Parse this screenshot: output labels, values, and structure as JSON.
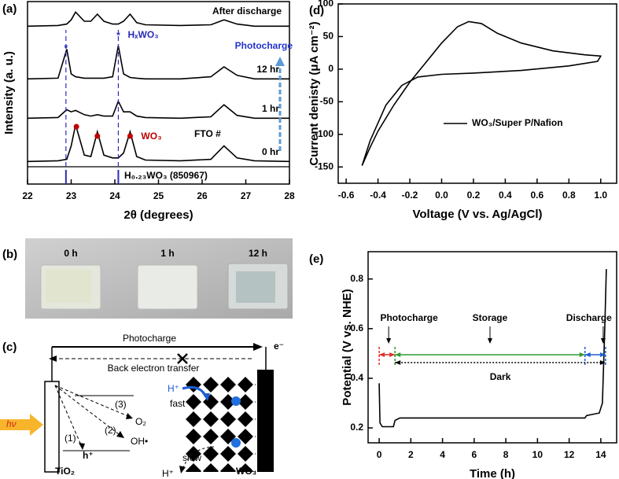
{
  "panel_labels": [
    "(a)",
    "(b)",
    "(c)",
    "(d)",
    "(e)"
  ],
  "chart_data": [
    {
      "type": "spectra",
      "xlabel": "2θ (degrees)",
      "ylabel": "Intensity (a. u.)",
      "xlim": [
        22,
        28
      ],
      "xticks": [
        22,
        23,
        24,
        25,
        26,
        27,
        28
      ],
      "x": [
        22,
        22.7,
        22.9,
        23.0,
        23.1,
        23.3,
        23.45,
        23.6,
        23.75,
        23.95,
        24.08,
        24.2,
        24.35,
        24.5,
        24.7,
        25.5,
        26.2,
        26.5,
        26.8,
        27.2,
        28
      ],
      "series": [
        {
          "name": "0 hr",
          "color": "#000000",
          "values": [
            3,
            4,
            6,
            25,
            55,
            12,
            10,
            45,
            12,
            8,
            8,
            15,
            45,
            10,
            5,
            4,
            6,
            25,
            8,
            4,
            3
          ]
        },
        {
          "name": "1 hr",
          "color": "#000000",
          "values": [
            3,
            4,
            15,
            12,
            14,
            8,
            6,
            8,
            6,
            6,
            27,
            12,
            12,
            6,
            4,
            3,
            5,
            22,
            7,
            3,
            3
          ]
        },
        {
          "name": "12 hr",
          "color": "#000000",
          "values": [
            3,
            4,
            45,
            10,
            6,
            4,
            4,
            4,
            4,
            6,
            50,
            10,
            5,
            4,
            3,
            3,
            6,
            20,
            8,
            3,
            3
          ]
        },
        {
          "name": "After discharge",
          "color": "#000000",
          "values": [
            3,
            4,
            6,
            12,
            23,
            10,
            10,
            20,
            10,
            6,
            6,
            10,
            20,
            8,
            5,
            4,
            5,
            12,
            6,
            3,
            3
          ]
        }
      ],
      "reference": {
        "name": "H₀.₂₃WO₃ (850967)",
        "color": "#2b2bb8",
        "x": [
          22.88,
          24.08
        ],
        "values": [
          100,
          100
        ]
      },
      "wo3_peaks": [
        23.12,
        23.6,
        24.35
      ],
      "annotations": {
        "photocharge": "Photocharge",
        "hxwo3": "HₓWO₃",
        "wo3": "WO₃",
        "fto": "FTO #",
        "star": "*"
      }
    },
    {
      "type": "line",
      "xlabel": "Voltage (V vs. Ag/AgCl)",
      "ylabel": "Current denisty (μA cm⁻²)",
      "xlim": [
        -0.65,
        1.1
      ],
      "xticks": [
        -0.6,
        -0.4,
        -0.2,
        {
          "value": 0,
          "label": "0.0"
        },
        0.2,
        0.4,
        0.6,
        0.8,
        {
          "value": 1,
          "label": "1.0"
        }
      ],
      "ylim": [
        -175,
        100
      ],
      "yticks": [
        -150,
        -100,
        -50,
        0,
        50,
        100
      ],
      "legend": "center right",
      "series": [
        {
          "name": "WO₃/Super P/Nafion",
          "color": "#000000",
          "x": [
            -0.5,
            -0.45,
            -0.4,
            -0.3,
            -0.2,
            -0.1,
            0,
            0.1,
            0.17,
            0.25,
            0.35,
            0.5,
            0.7,
            0.9,
            1.0,
            0.98,
            0.8,
            0.5,
            0.2,
            0,
            -0.15,
            -0.25,
            -0.35,
            -0.45,
            -0.5
          ],
          "values": [
            -148,
            -120,
            -95,
            -55,
            -20,
            10,
            40,
            65,
            73,
            70,
            55,
            40,
            28,
            22,
            20,
            12,
            5,
            -2,
            -6,
            -8,
            -12,
            -25,
            -55,
            -110,
            -148
          ]
        }
      ]
    },
    {
      "type": "line",
      "xlabel": "Time (h)",
      "ylabel": "Potential (V vs. NHE)",
      "xlim": [
        -0.7,
        15
      ],
      "xticks": [
        0,
        2,
        4,
        6,
        8,
        10,
        12,
        14
      ],
      "ylim": [
        0.14,
        0.91
      ],
      "yticks": [
        0.2,
        0.4,
        0.6,
        0.8
      ],
      "series": [
        {
          "color": "#000000",
          "x": [
            0,
            0.05,
            0.2,
            0.9,
            1.0,
            1.3,
            13,
            13.1,
            13.9,
            14.1,
            14.25,
            14.35
          ],
          "values": [
            0.38,
            0.22,
            0.205,
            0.205,
            0.23,
            0.24,
            0.24,
            0.25,
            0.26,
            0.3,
            0.6,
            0.84
          ]
        }
      ],
      "phases": [
        {
          "name": "Photocharge",
          "start": 0,
          "end": 1,
          "color": "#e0302a"
        },
        {
          "name": "Storage",
          "start": 1,
          "end": 13,
          "color": "#2e9e2e"
        },
        {
          "name": "Discharge",
          "start": 13,
          "end": 14.3,
          "color": "#1e5fd6"
        },
        {
          "name": "Dark",
          "start": 1,
          "end": 14.3,
          "color": "#000000"
        }
      ]
    }
  ],
  "photo": {
    "labels": [
      "0 h",
      "1 h",
      "12 h"
    ]
  },
  "diagram": {
    "photocharge": "Photocharge",
    "electron": "e⁻",
    "back_transfer": "Back electron transfer",
    "light": "hν",
    "path1": "(1)",
    "path2": "(2)",
    "path3": "(3)",
    "hole": "h⁺",
    "oxygen": "O₂",
    "hydroxyl": "OH•",
    "proton_in": "H⁺",
    "fast": "fast",
    "slow": "slow",
    "proton_out": "H⁺",
    "tio2": "TiO₂",
    "wo3": "WO₃"
  }
}
